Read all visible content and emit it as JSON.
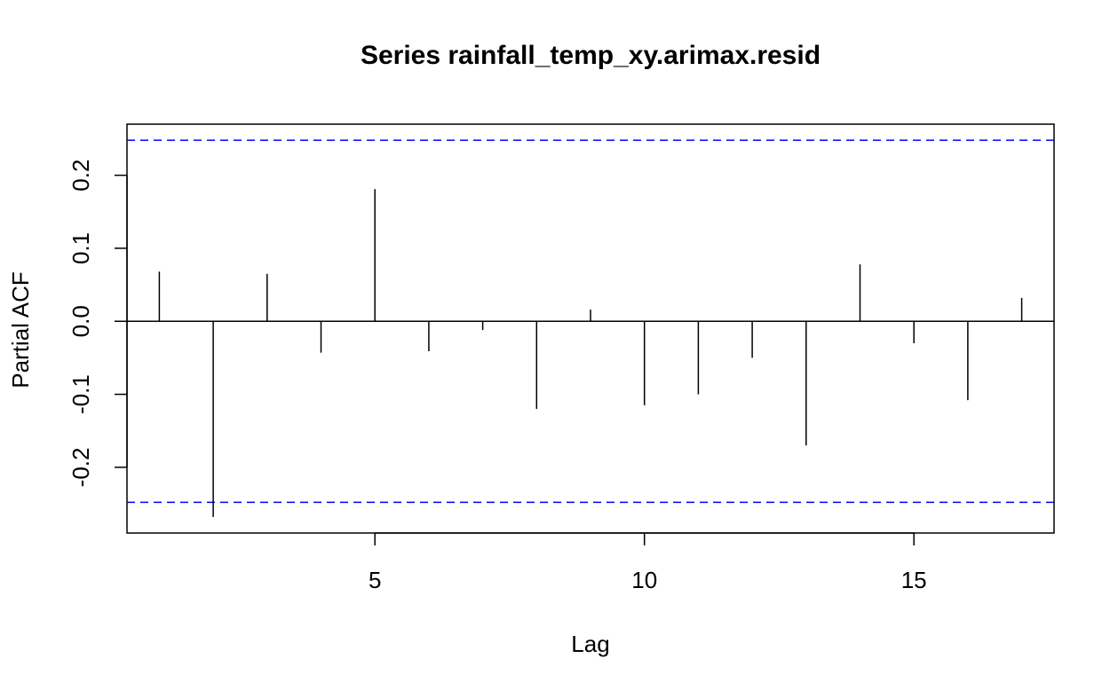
{
  "chart_data": {
    "type": "bar",
    "title": "Series  rainfall_temp_xy.arimax.resid",
    "xlabel": "Lag",
    "ylabel": "Partial ACF",
    "x": [
      1,
      2,
      3,
      4,
      5,
      6,
      7,
      8,
      9,
      10,
      11,
      12,
      13,
      14,
      15,
      16,
      17
    ],
    "values": [
      0.068,
      -0.268,
      0.065,
      -0.043,
      0.181,
      -0.041,
      -0.012,
      -0.12,
      0.016,
      -0.115,
      -0.1,
      -0.05,
      -0.17,
      0.078,
      -0.03,
      -0.108,
      0.032
    ],
    "xlim": [
      0.4,
      17.6
    ],
    "ylim": [
      -0.29,
      0.27
    ],
    "x_ticks": [
      5,
      10,
      15
    ],
    "y_ticks": [
      -0.2,
      -0.1,
      0.0,
      0.1,
      0.2
    ],
    "y_tick_labels": [
      "-0.2",
      "-0.1",
      "0.0",
      "0.1",
      "0.2"
    ],
    "confidence_bounds": [
      0.248,
      -0.248
    ],
    "confidence_color": "#0000ff",
    "bar_color": "#000000",
    "grid": false,
    "legend": "none"
  }
}
